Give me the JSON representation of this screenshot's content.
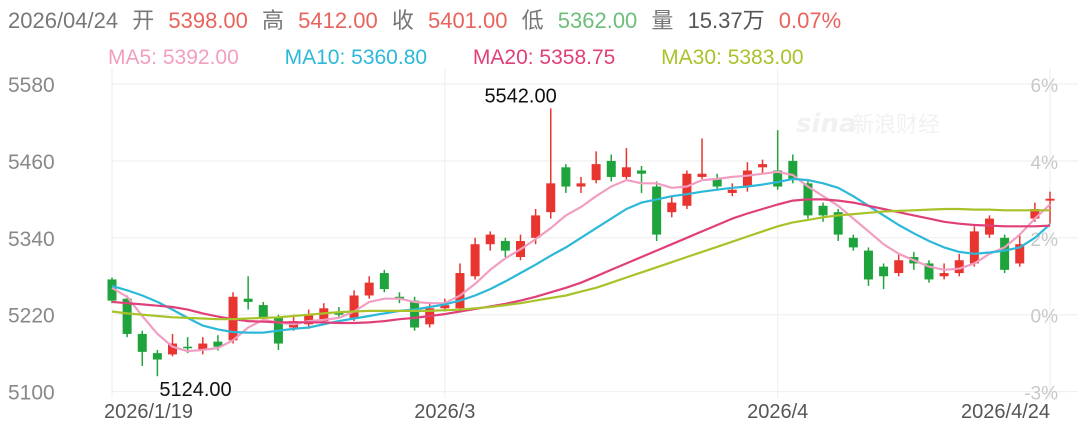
{
  "quote": {
    "date": "2026/04/24",
    "open_label": "开",
    "open": "5398.00",
    "high_label": "高",
    "high": "5412.00",
    "close_label": "收",
    "close": "5401.00",
    "low_label": "低",
    "low": "5362.00",
    "volume_label": "量",
    "volume": "15.37万",
    "change": "0.07%"
  },
  "ma_legend": [
    {
      "label": "MA5: 5392.00",
      "color": "#f19ec2"
    },
    {
      "label": "MA10: 5360.80",
      "color": "#2cb8d8"
    },
    {
      "label": "MA20: 5358.75",
      "color": "#e0407a"
    },
    {
      "label": "MA30: 5383.00",
      "color": "#a8c32a"
    }
  ],
  "colors": {
    "up": "#e8352f",
    "down": "#1fa33c",
    "text_gray": "#777777",
    "grid": "#eeeeee"
  },
  "watermark": {
    "logo": "sina",
    "text": "新浪财经"
  },
  "chart_data": {
    "type": "candlestick",
    "ylim": [
      5090,
      5605
    ],
    "y_ticks": [
      5580,
      5460,
      5340,
      5220,
      5100
    ],
    "pct_ticks": [
      "6%",
      "4%",
      "2%",
      "0%",
      "-3%"
    ],
    "x_ticks": [
      {
        "label": "2026/1/19",
        "index": 0
      },
      {
        "label": "2026/3",
        "index": 22
      },
      {
        "label": "2026/4",
        "index": 44
      },
      {
        "label": "2026/4/24",
        "index": 62
      }
    ],
    "annotations": [
      {
        "label": "5542.00",
        "value": 5542,
        "index": 29
      },
      {
        "label": "5124.00",
        "value": 5124,
        "index": 3
      }
    ],
    "candles": [
      [
        5275,
        5242,
        5278,
        5238
      ],
      [
        5245,
        5190,
        5250,
        5185
      ],
      [
        5190,
        5162,
        5195,
        5140
      ],
      [
        5160,
        5150,
        5165,
        5124
      ],
      [
        5158,
        5175,
        5190,
        5155
      ],
      [
        5170,
        5168,
        5185,
        5160
      ],
      [
        5165,
        5175,
        5185,
        5158
      ],
      [
        5178,
        5170,
        5188,
        5164
      ],
      [
        5180,
        5248,
        5255,
        5175
      ],
      [
        5245,
        5240,
        5280,
        5228
      ],
      [
        5235,
        5215,
        5240,
        5210
      ],
      [
        5215,
        5175,
        5220,
        5165
      ],
      [
        5200,
        5210,
        5220,
        5195
      ],
      [
        5205,
        5220,
        5228,
        5198
      ],
      [
        5210,
        5230,
        5238,
        5205
      ],
      [
        5225,
        5220,
        5232,
        5215
      ],
      [
        5215,
        5250,
        5258,
        5210
      ],
      [
        5250,
        5270,
        5280,
        5245
      ],
      [
        5285,
        5260,
        5290,
        5255
      ],
      [
        5248,
        5245,
        5255,
        5238
      ],
      [
        5242,
        5200,
        5248,
        5195
      ],
      [
        5205,
        5230,
        5240,
        5200
      ],
      [
        5230,
        5235,
        5245,
        5225
      ],
      [
        5230,
        5285,
        5300,
        5225
      ],
      [
        5280,
        5330,
        5340,
        5275
      ],
      [
        5330,
        5345,
        5350,
        5320
      ],
      [
        5335,
        5320,
        5340,
        5310
      ],
      [
        5310,
        5335,
        5345,
        5305
      ],
      [
        5340,
        5375,
        5385,
        5330
      ],
      [
        5380,
        5425,
        5542,
        5370
      ],
      [
        5450,
        5420,
        5455,
        5410
      ],
      [
        5420,
        5425,
        5435,
        5410
      ],
      [
        5430,
        5455,
        5475,
        5425
      ],
      [
        5460,
        5435,
        5470,
        5428
      ],
      [
        5435,
        5450,
        5480,
        5430
      ],
      [
        5445,
        5440,
        5452,
        5410
      ],
      [
        5420,
        5345,
        5428,
        5335
      ],
      [
        5380,
        5395,
        5405,
        5372
      ],
      [
        5390,
        5440,
        5445,
        5385
      ],
      [
        5435,
        5440,
        5495,
        5432
      ],
      [
        5432,
        5420,
        5440,
        5415
      ],
      [
        5410,
        5415,
        5425,
        5405
      ],
      [
        5420,
        5445,
        5458,
        5412
      ],
      [
        5450,
        5455,
        5462,
        5440
      ],
      [
        5445,
        5420,
        5508,
        5415
      ],
      [
        5460,
        5430,
        5470,
        5425
      ],
      [
        5425,
        5375,
        5430,
        5370
      ],
      [
        5390,
        5375,
        5395,
        5365
      ],
      [
        5380,
        5345,
        5385,
        5335
      ],
      [
        5340,
        5325,
        5345,
        5320
      ],
      [
        5320,
        5275,
        5325,
        5265
      ],
      [
        5295,
        5280,
        5300,
        5260
      ],
      [
        5285,
        5305,
        5315,
        5280
      ],
      [
        5310,
        5300,
        5318,
        5290
      ],
      [
        5300,
        5275,
        5305,
        5270
      ],
      [
        5280,
        5285,
        5300,
        5275
      ],
      [
        5285,
        5305,
        5315,
        5280
      ],
      [
        5300,
        5350,
        5358,
        5295
      ],
      [
        5345,
        5370,
        5375,
        5340
      ],
      [
        5340,
        5290,
        5345,
        5285
      ],
      [
        5300,
        5330,
        5345,
        5295
      ],
      [
        5370,
        5385,
        5395,
        5365
      ],
      [
        5398,
        5401,
        5412,
        5362
      ]
    ],
    "series": [
      {
        "name": "MA5",
        "color": "#f19ec2",
        "values": [
          5262,
          5248,
          5218,
          5190,
          5170,
          5163,
          5165,
          5168,
          5180,
          5200,
          5212,
          5208,
          5205,
          5210,
          5212,
          5215,
          5225,
          5240,
          5245,
          5245,
          5240,
          5238,
          5238,
          5250,
          5268,
          5290,
          5308,
          5322,
          5338,
          5355,
          5375,
          5388,
          5405,
          5420,
          5430,
          5425,
          5425,
          5418,
          5420,
          5430,
          5432,
          5435,
          5437,
          5440,
          5443,
          5438,
          5420,
          5405,
          5390,
          5370,
          5350,
          5330,
          5315,
          5305,
          5295,
          5290,
          5292,
          5300,
          5315,
          5325,
          5345,
          5370,
          5392
        ]
      },
      {
        "name": "MA10",
        "color": "#2cb8d8",
        "values": [
          5265,
          5258,
          5250,
          5240,
          5228,
          5215,
          5203,
          5197,
          5193,
          5192,
          5192,
          5195,
          5198,
          5200,
          5205,
          5210,
          5214,
          5218,
          5222,
          5226,
          5228,
          5232,
          5236,
          5242,
          5250,
          5260,
          5272,
          5285,
          5298,
          5312,
          5325,
          5340,
          5355,
          5370,
          5385,
          5395,
          5400,
          5405,
          5408,
          5412,
          5415,
          5418,
          5420,
          5423,
          5427,
          5432,
          5430,
          5425,
          5418,
          5405,
          5390,
          5375,
          5360,
          5347,
          5335,
          5325,
          5318,
          5315,
          5317,
          5320,
          5325,
          5340,
          5361
        ]
      },
      {
        "name": "MA20",
        "color": "#e0407a",
        "values": [
          5240,
          5238,
          5236,
          5234,
          5232,
          5228,
          5222,
          5217,
          5213,
          5210,
          5209,
          5208,
          5208,
          5208,
          5208,
          5207,
          5207,
          5208,
          5210,
          5213,
          5215,
          5218,
          5221,
          5225,
          5229,
          5233,
          5237,
          5242,
          5248,
          5255,
          5262,
          5270,
          5280,
          5290,
          5300,
          5310,
          5320,
          5330,
          5340,
          5350,
          5360,
          5370,
          5378,
          5385,
          5392,
          5398,
          5400,
          5400,
          5398,
          5395,
          5390,
          5385,
          5380,
          5375,
          5370,
          5365,
          5362,
          5360,
          5359,
          5358,
          5358,
          5358,
          5359
        ]
      },
      {
        "name": "MA30",
        "color": "#a8c32a",
        "values": [
          5225,
          5222,
          5220,
          5218,
          5216,
          5215,
          5214,
          5213,
          5213,
          5214,
          5215,
          5216,
          5218,
          5220,
          5222,
          5224,
          5225,
          5226,
          5226,
          5226,
          5226,
          5226,
          5227,
          5228,
          5230,
          5232,
          5235,
          5238,
          5242,
          5246,
          5250,
          5256,
          5262,
          5270,
          5278,
          5286,
          5294,
          5302,
          5310,
          5318,
          5326,
          5334,
          5342,
          5350,
          5358,
          5364,
          5368,
          5372,
          5375,
          5377,
          5379,
          5381,
          5382,
          5383,
          5384,
          5385,
          5385,
          5384,
          5384,
          5383,
          5383,
          5383,
          5383
        ]
      }
    ]
  }
}
